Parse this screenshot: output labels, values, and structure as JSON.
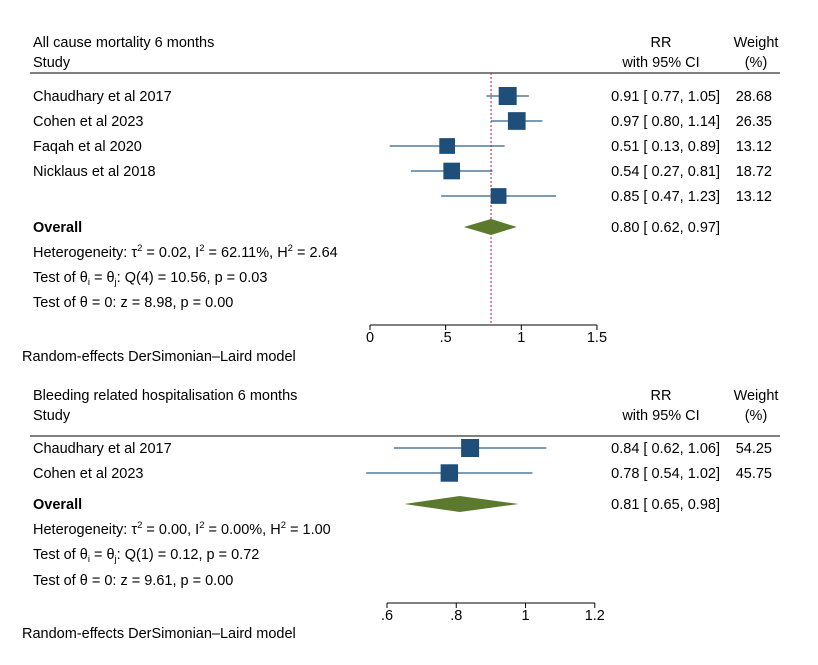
{
  "chart_data": [
    {
      "type": "forest",
      "title": "All cause mortality 6 months",
      "study_header": "Study",
      "effect_header": [
        "RR",
        "with 95% CI"
      ],
      "weight_header": [
        "Weight",
        "(%)"
      ],
      "studies": [
        {
          "label": "Chaudhary et al 2017",
          "rr": 0.91,
          "lo": 0.77,
          "hi": 1.05,
          "ci_text": "0.91 [ 0.77,  1.05]",
          "weight": 28.68,
          "weight_text": "28.68"
        },
        {
          "label": "Cohen et al 2023",
          "rr": 0.97,
          "lo": 0.8,
          "hi": 1.14,
          "ci_text": "0.97 [ 0.80,  1.14]",
          "weight": 26.35,
          "weight_text": "26.35"
        },
        {
          "label": "Faqah et al 2020",
          "rr": 0.51,
          "lo": 0.13,
          "hi": 0.89,
          "ci_text": "0.51 [ 0.13,  0.89]",
          "weight": 13.12,
          "weight_text": "13.12"
        },
        {
          "label": "Nicklaus et al 2018",
          "rr": 0.54,
          "lo": 0.27,
          "hi": 0.81,
          "ci_text": "0.54 [ 0.27,  0.81]",
          "weight": 18.72,
          "weight_text": "18.72"
        },
        {
          "label": "",
          "rr": 0.85,
          "lo": 0.47,
          "hi": 1.23,
          "ci_text": "0.85 [ 0.47,  1.23]",
          "weight": 13.12,
          "weight_text": "13.12"
        }
      ],
      "overall": {
        "label": "Overall",
        "rr": 0.8,
        "lo": 0.62,
        "hi": 0.97,
        "ci_text": "0.80 [ 0.62,  0.97]"
      },
      "stats": {
        "heterogeneity": {
          "prefix": "Heterogeneity: τ",
          "tau_val": " = 0.02, I",
          "i_val": " = 62.11%, H",
          "h_val": " = 2.64",
          "sup": "2"
        },
        "q_test": {
          "prefix": "Test of θ",
          "mid": " = θ",
          "suffix": ": Q(4) = 10.56, p = 0.03",
          "sub_i": "i",
          "sub_j": "j"
        },
        "z_test": "Test of θ = 0: z = 8.98, p = 0.00"
      },
      "x_ticks": [
        0,
        0.5,
        1,
        1.5
      ],
      "x_tick_labels": [
        "0",
        ".5",
        "1",
        "1.5"
      ],
      "xlim": [
        0,
        1.5
      ],
      "reference_line": 0.8,
      "model_note": "Random-effects DerSimonian–Laird model"
    },
    {
      "type": "forest",
      "title": "Bleeding related hospitalisation 6 months",
      "study_header": "Study",
      "effect_header": [
        "RR",
        "with 95% CI"
      ],
      "weight_header": [
        "Weight",
        "(%)"
      ],
      "studies": [
        {
          "label": "Chaudhary et al 2017",
          "rr": 0.84,
          "lo": 0.62,
          "hi": 1.06,
          "ci_text": "0.84 [ 0.62,  1.06]",
          "weight": 54.25,
          "weight_text": "54.25"
        },
        {
          "label": "Cohen et al 2023",
          "rr": 0.78,
          "lo": 0.54,
          "hi": 1.02,
          "ci_text": "0.78 [ 0.54,  1.02]",
          "weight": 45.75,
          "weight_text": "45.75"
        }
      ],
      "overall": {
        "label": "Overall",
        "rr": 0.81,
        "lo": 0.65,
        "hi": 0.98,
        "ci_text": "0.81 [ 0.65,  0.98]"
      },
      "stats": {
        "heterogeneity": {
          "prefix": "Heterogeneity: τ",
          "tau_val": " = 0.00, I",
          "i_val": " = 0.00%, H",
          "h_val": " = 1.00",
          "sup": "2"
        },
        "q_test": {
          "prefix": "Test of θ",
          "mid": " = θ",
          "suffix": ": Q(1) = 0.12, p = 0.72",
          "sub_i": "i",
          "sub_j": "j"
        },
        "z_test": "Test of θ = 0: z = 9.61, p = 0.00"
      },
      "x_ticks": [
        0.6,
        0.8,
        1,
        1.2
      ],
      "x_tick_labels": [
        ".6",
        ".8",
        "1",
        "1.2"
      ],
      "xlim": [
        0.55,
        1.2
      ],
      "reference_line": null,
      "model_note": "Random-effects DerSimonian–Laird model"
    }
  ],
  "colors": {
    "marker": "#1f4e79",
    "ci_line": "#2e5f8a",
    "diamond": "#5b7a2e",
    "ref_line": "#c0143c",
    "rule": "#000000",
    "text": "#000000"
  }
}
